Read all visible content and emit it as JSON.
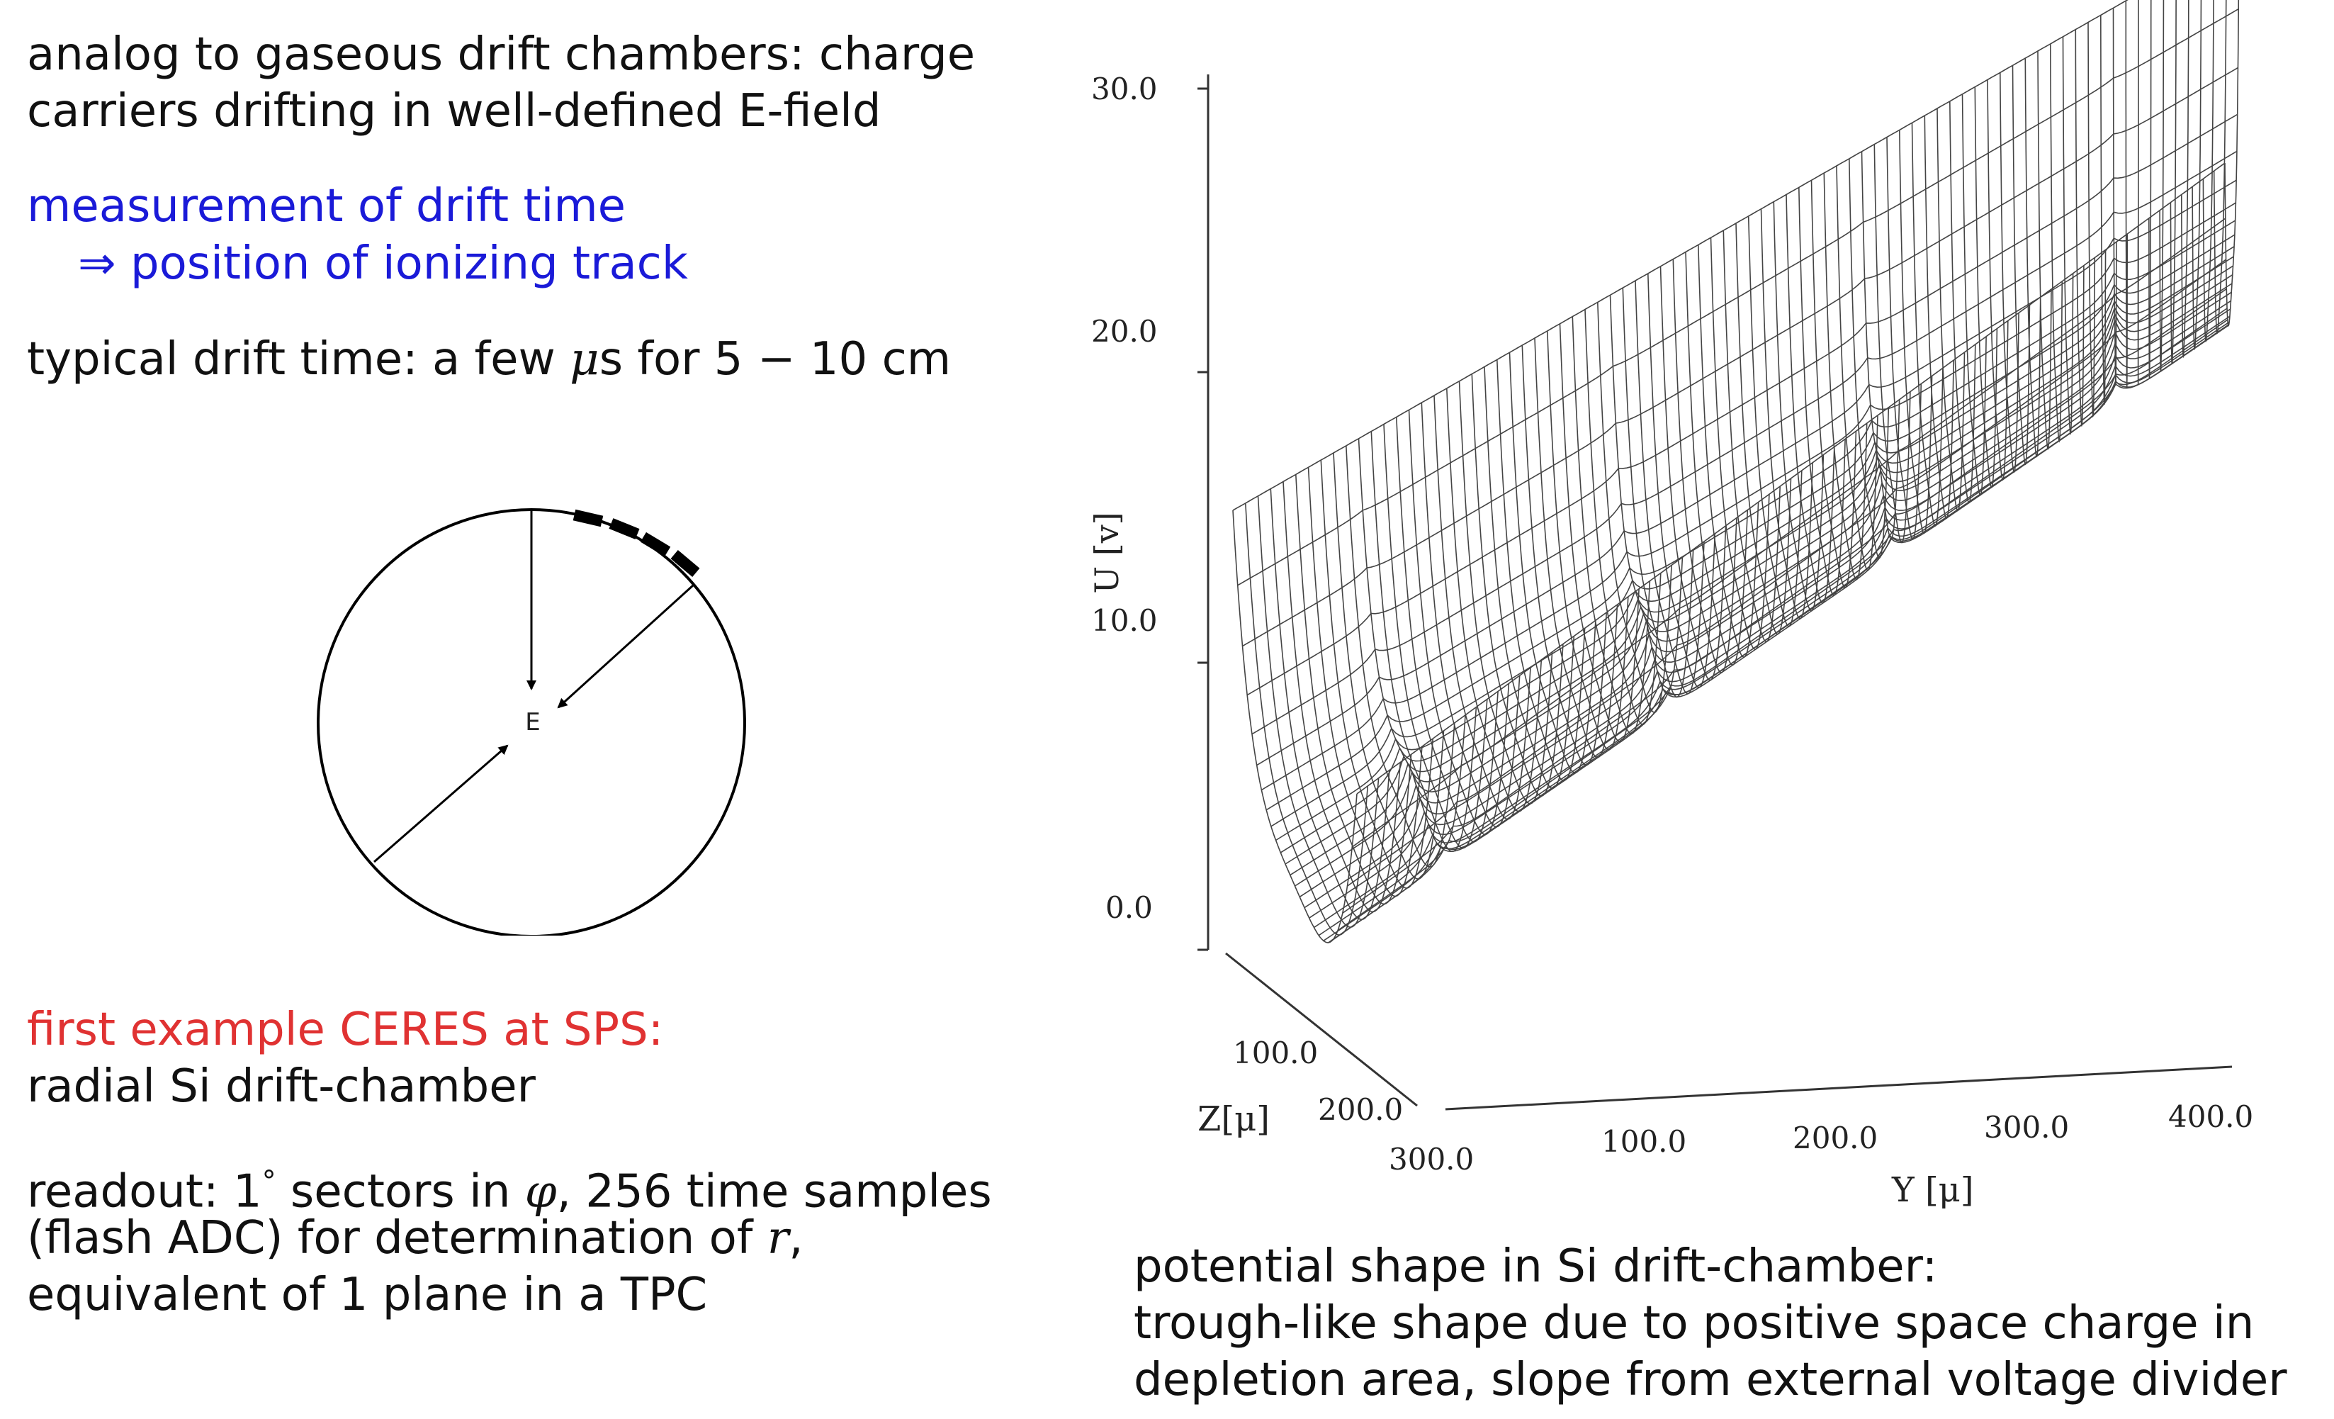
{
  "intro": {
    "line1": "analog to gaseous drift chambers: charge",
    "line2": "carriers drifting in well-defined E-field"
  },
  "measurement": {
    "line1": "measurement of drift time",
    "arrow": "⇒",
    "line2": "position of ionizing track"
  },
  "typical": {
    "prefix": "typical drift time: a few ",
    "mu": "μ",
    "suffix": "s for 5 − 10 cm"
  },
  "circle_diagram": {
    "center_label": "E"
  },
  "ceres": {
    "title": "first example CERES at SPS:",
    "subtitle": "radial Si drift-chamber"
  },
  "readout": {
    "l1_a": "readout: 1",
    "l1_deg": "°",
    "l1_b": " sectors in ",
    "l1_phi": "φ",
    "l1_c": ", 256 time samples",
    "l2_a": "(flash ADC) for determination of ",
    "l2_r": "r",
    "l2_b": ",",
    "l3": "equivalent of 1 plane in a TPC"
  },
  "plot": {
    "y_axis_label": "U [v]",
    "z_ticks": [
      "0.0",
      "10.0",
      "20.0",
      "30.0"
    ],
    "depth_axis_label": "Z[μ]",
    "depth_ticks": [
      "100.0",
      "200.0",
      "300.0"
    ],
    "x_axis_label": "Y [μ]",
    "x_ticks": [
      "100.0",
      "200.0",
      "300.0",
      "400.0"
    ]
  },
  "caption": {
    "line1": "potential shape in Si drift-chamber:",
    "line2": "trough-like shape due to positive space charge in",
    "line3": "depletion area, slope from external voltage divider"
  }
}
